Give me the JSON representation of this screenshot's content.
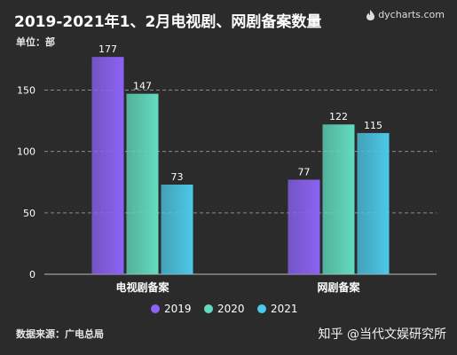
{
  "header": {
    "title": "2019-2021年1、2月电视剧、网剧备案数量",
    "unit": "单位：部",
    "brand": "dycharts.com"
  },
  "footer": {
    "source": "数据来源：广电总局",
    "watermark": "知乎 @当代文娱研究所"
  },
  "chart_data": {
    "type": "bar",
    "categories": [
      "电视剧备案",
      "网剧备案"
    ],
    "series": [
      {
        "name": "2019",
        "values": [
          177,
          77
        ],
        "color": "#8b63f5"
      },
      {
        "name": "2020",
        "values": [
          147,
          122
        ],
        "color": "#62dcbf"
      },
      {
        "name": "2021",
        "values": [
          73,
          115
        ],
        "color": "#4cc8e8"
      }
    ],
    "yticks": [
      0,
      50,
      100,
      150
    ],
    "ylim": [
      0,
      180
    ],
    "grid": true,
    "legend": "bottom"
  }
}
